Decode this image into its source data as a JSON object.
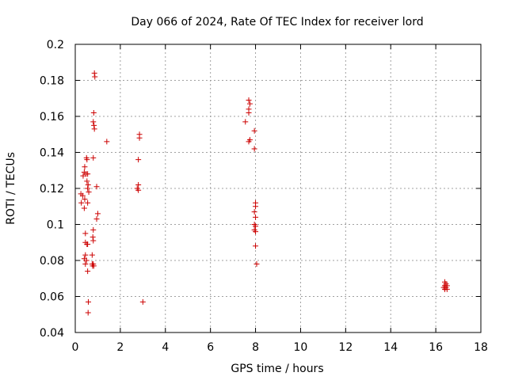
{
  "chart_data": {
    "type": "scatter",
    "title": "Day 066 of 2024, Rate Of TEC Index for receiver lord",
    "xlabel": "GPS time / hours",
    "ylabel": "ROTI / TECUs",
    "xlim": [
      0,
      18
    ],
    "ylim": [
      0.04,
      0.2
    ],
    "xticks": [
      0,
      2,
      4,
      6,
      8,
      10,
      12,
      14,
      16,
      18
    ],
    "xtick_labels": [
      "0",
      "2",
      "4",
      "6",
      "8",
      "10",
      "12",
      "14",
      "16",
      "18"
    ],
    "yticks": [
      0.04,
      0.06,
      0.08,
      0.1,
      0.12,
      0.14,
      0.16,
      0.18,
      0.2
    ],
    "ytick_labels": [
      "0.04",
      "0.06",
      "0.08",
      "0.1",
      "0.12",
      "0.14",
      "0.16",
      "0.18",
      "0.2"
    ],
    "grid": true,
    "marker": "+",
    "colors": {
      "points": "#cc0000",
      "grid": "#a0a0a0",
      "axes": "#000000"
    },
    "series": [
      {
        "points": [
          [
            0.85,
            0.184
          ],
          [
            0.87,
            0.182
          ],
          [
            0.82,
            0.162
          ],
          [
            0.8,
            0.157
          ],
          [
            0.83,
            0.155
          ],
          [
            0.85,
            0.153
          ],
          [
            1.4,
            0.146
          ],
          [
            0.8,
            0.137
          ],
          [
            0.5,
            0.137
          ],
          [
            0.52,
            0.136
          ],
          [
            0.42,
            0.132
          ],
          [
            0.4,
            0.129
          ],
          [
            0.48,
            0.128
          ],
          [
            0.55,
            0.128
          ],
          [
            0.35,
            0.127
          ],
          [
            0.52,
            0.124
          ],
          [
            0.57,
            0.122
          ],
          [
            0.55,
            0.12
          ],
          [
            0.6,
            0.118
          ],
          [
            0.95,
            0.121
          ],
          [
            0.25,
            0.117
          ],
          [
            0.33,
            0.116
          ],
          [
            0.42,
            0.114
          ],
          [
            0.27,
            0.112
          ],
          [
            0.55,
            0.112
          ],
          [
            0.4,
            0.109
          ],
          [
            1.0,
            0.106
          ],
          [
            0.95,
            0.103
          ],
          [
            0.8,
            0.097
          ],
          [
            0.45,
            0.095
          ],
          [
            0.78,
            0.093
          ],
          [
            0.8,
            0.091
          ],
          [
            0.45,
            0.09
          ],
          [
            0.52,
            0.089
          ],
          [
            0.55,
            0.089
          ],
          [
            0.75,
            0.083
          ],
          [
            0.45,
            0.083
          ],
          [
            0.4,
            0.081
          ],
          [
            0.5,
            0.08
          ],
          [
            0.45,
            0.078
          ],
          [
            0.75,
            0.078
          ],
          [
            0.8,
            0.078
          ],
          [
            0.77,
            0.077
          ],
          [
            0.82,
            0.077
          ],
          [
            0.55,
            0.074
          ],
          [
            0.58,
            0.057
          ],
          [
            0.57,
            0.051
          ],
          [
            2.85,
            0.15
          ],
          [
            2.85,
            0.148
          ],
          [
            2.8,
            0.136
          ],
          [
            2.8,
            0.122
          ],
          [
            2.75,
            0.12
          ],
          [
            2.8,
            0.119
          ],
          [
            3.0,
            0.057
          ],
          [
            7.7,
            0.169
          ],
          [
            7.75,
            0.167
          ],
          [
            7.7,
            0.164
          ],
          [
            7.7,
            0.162
          ],
          [
            7.55,
            0.157
          ],
          [
            7.95,
            0.152
          ],
          [
            7.75,
            0.147
          ],
          [
            7.7,
            0.146
          ],
          [
            7.95,
            0.142
          ],
          [
            8.0,
            0.112
          ],
          [
            8.0,
            0.11
          ],
          [
            7.95,
            0.107
          ],
          [
            8.0,
            0.104
          ],
          [
            7.95,
            0.1
          ],
          [
            8.0,
            0.099
          ],
          [
            7.95,
            0.097
          ],
          [
            8.0,
            0.096
          ],
          [
            8.0,
            0.088
          ],
          [
            8.05,
            0.078
          ],
          [
            16.4,
            0.068
          ],
          [
            16.45,
            0.067
          ],
          [
            16.4,
            0.066
          ],
          [
            16.5,
            0.066
          ],
          [
            16.35,
            0.065
          ],
          [
            16.45,
            0.065
          ],
          [
            16.4,
            0.064
          ],
          [
            16.5,
            0.064
          ]
        ]
      }
    ]
  }
}
